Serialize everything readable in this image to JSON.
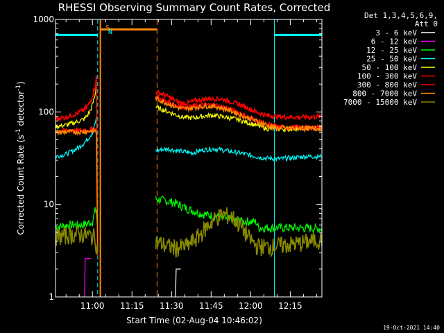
{
  "chart_data": {
    "type": "line",
    "title": "RHESSI Observing Summary Count Rates, Corrected",
    "xlabel": "Start Time (02-Aug-04 10:46:02)",
    "ylabel_parts": [
      "Corrected Count Rate (s",
      "-1",
      " detector",
      "-1",
      ")"
    ],
    "y_scale": "log",
    "ylim": [
      1,
      1000
    ],
    "y_ticks": [
      {
        "value": 1,
        "label": "1"
      },
      {
        "value": 10,
        "label": "10"
      },
      {
        "value": 100,
        "label": "100"
      },
      {
        "value": 1000,
        "label": "1000"
      }
    ],
    "xlim_minutes": [
      0,
      101
    ],
    "x_ticks": [
      {
        "t": 14,
        "label": "11:00"
      },
      {
        "t": 29,
        "label": "11:15"
      },
      {
        "t": 44,
        "label": "11:30"
      },
      {
        "t": 59,
        "label": "11:45"
      },
      {
        "t": 74,
        "label": "12:00"
      },
      {
        "t": 89,
        "label": "12:15"
      }
    ],
    "legend_header": [
      "Det 1,3,4,5,6,9,",
      "Att 0"
    ],
    "legend_placement": "right",
    "series": [
      {
        "name": "3 - 6 keV",
        "color": "#ffffff",
        "points": [
          [
            45.5,
            1
          ],
          [
            45.6,
            2
          ],
          [
            47.5,
            2
          ],
          [
            47.6,
            1
          ]
        ]
      },
      {
        "name": "6 - 12 keV",
        "color": "#ff00ff",
        "points": [
          [
            11,
            1
          ],
          [
            11.1,
            2.6
          ],
          [
            13.5,
            2.6
          ],
          [
            13.6,
            1
          ]
        ]
      },
      {
        "name": "12 - 25 keV",
        "color": "#00ff00",
        "points": [
          [
            0,
            5.7
          ],
          [
            5,
            6
          ],
          [
            10,
            6
          ],
          [
            14,
            6.5
          ],
          [
            15,
            8.5
          ],
          [
            15.5,
            8.8
          ],
          [
            16,
            4.6
          ],
          [
            38,
            11.5
          ],
          [
            45,
            10.5
          ],
          [
            50,
            9
          ],
          [
            55,
            8
          ],
          [
            60,
            7.5
          ],
          [
            65,
            7
          ],
          [
            70,
            6.6
          ],
          [
            76,
            6.5
          ],
          [
            77,
            5.6
          ],
          [
            90,
            5.6
          ],
          [
            101,
            5.5
          ]
        ]
      },
      {
        "name": "25 - 50 keV",
        "color": "#00ffff",
        "points": [
          [
            0,
            33
          ],
          [
            4,
            35
          ],
          [
            8,
            40
          ],
          [
            10,
            44
          ],
          [
            12,
            50
          ],
          [
            14,
            60
          ],
          [
            15,
            75
          ],
          [
            15.5,
            85
          ],
          [
            16,
            3
          ],
          [
            38,
            38
          ],
          [
            42,
            40
          ],
          [
            46,
            38
          ],
          [
            52,
            36
          ],
          [
            56,
            39
          ],
          [
            60,
            40
          ],
          [
            65,
            38
          ],
          [
            70,
            36
          ],
          [
            74,
            34
          ],
          [
            78,
            32
          ],
          [
            84,
            31
          ],
          [
            90,
            32
          ],
          [
            95,
            33
          ],
          [
            101,
            33
          ]
        ]
      },
      {
        "name": "50 - 100 keV",
        "color": "#ffff00",
        "points": [
          [
            0,
            70
          ],
          [
            4,
            72
          ],
          [
            8,
            78
          ],
          [
            11,
            84
          ],
          [
            13,
            100
          ],
          [
            14,
            120
          ],
          [
            15,
            150
          ],
          [
            15.5,
            200
          ],
          [
            16,
            3
          ],
          [
            38,
            112
          ],
          [
            41,
            105
          ],
          [
            45,
            95
          ],
          [
            48,
            88
          ],
          [
            52,
            86
          ],
          [
            56,
            90
          ],
          [
            60,
            92
          ],
          [
            64,
            88
          ],
          [
            68,
            84
          ],
          [
            72,
            78
          ],
          [
            76,
            72
          ],
          [
            80,
            66
          ],
          [
            84,
            65
          ],
          [
            90,
            66
          ],
          [
            95,
            67
          ],
          [
            101,
            68
          ]
        ]
      },
      {
        "name": "100 - 300 keV",
        "color": "#ff0000",
        "points": [
          [
            0,
            84
          ],
          [
            4,
            88
          ],
          [
            8,
            96
          ],
          [
            11,
            106
          ],
          [
            13,
            125
          ],
          [
            14,
            150
          ],
          [
            15,
            190
          ],
          [
            15.5,
            240
          ],
          [
            16,
            3
          ],
          [
            38,
            165
          ],
          [
            42,
            150
          ],
          [
            46,
            130
          ],
          [
            49,
            122
          ],
          [
            53,
            132
          ],
          [
            58,
            140
          ],
          [
            63,
            138
          ],
          [
            68,
            125
          ],
          [
            72,
            114
          ],
          [
            76,
            100
          ],
          [
            80,
            92
          ],
          [
            84,
            89
          ],
          [
            88,
            88
          ],
          [
            92,
            88
          ],
          [
            96,
            88
          ],
          [
            101,
            89
          ]
        ]
      },
      {
        "name": "300 - 800 keV",
        "color": "#ff0000",
        "points": [
          [
            0,
            62
          ],
          [
            5,
            63
          ],
          [
            10,
            63
          ],
          [
            13,
            64
          ],
          [
            14.5,
            66
          ],
          [
            15.5,
            64
          ],
          [
            16,
            3
          ],
          [
            38,
            145
          ],
          [
            42,
            130
          ],
          [
            46,
            118
          ],
          [
            49,
            112
          ],
          [
            53,
            116
          ],
          [
            57,
            120
          ],
          [
            61,
            118
          ],
          [
            65,
            110
          ],
          [
            69,
            100
          ],
          [
            72,
            90
          ],
          [
            76,
            82
          ],
          [
            80,
            74
          ],
          [
            84,
            69
          ],
          [
            90,
            68
          ],
          [
            95,
            68
          ],
          [
            101,
            68
          ]
        ]
      },
      {
        "name": "800 - 7000 keV",
        "color": "#ff8800",
        "points": [
          [
            0,
            60
          ],
          [
            5,
            61
          ],
          [
            10,
            61
          ],
          [
            13,
            62
          ],
          [
            15.5,
            62
          ],
          [
            16,
            3
          ],
          [
            38,
            140
          ],
          [
            42,
            125
          ],
          [
            46,
            112
          ],
          [
            49,
            108
          ],
          [
            53,
            112
          ],
          [
            57,
            116
          ],
          [
            61,
            114
          ],
          [
            65,
            106
          ],
          [
            69,
            96
          ],
          [
            72,
            88
          ],
          [
            76,
            80
          ],
          [
            80,
            72
          ],
          [
            84,
            67
          ],
          [
            90,
            67
          ],
          [
            95,
            66
          ],
          [
            101,
            66
          ]
        ]
      },
      {
        "name": "7000 - 15000 keV",
        "color": "#888800",
        "points": [
          [
            0,
            4.5
          ],
          [
            5,
            4.7
          ],
          [
            10,
            4.8
          ],
          [
            15,
            4.5
          ],
          [
            16,
            3
          ],
          [
            38,
            4
          ],
          [
            42,
            3.6
          ],
          [
            46,
            3.4
          ],
          [
            50,
            3.6
          ],
          [
            54,
            4.5
          ],
          [
            58,
            6
          ],
          [
            61,
            7.3
          ],
          [
            64,
            7.8
          ],
          [
            67,
            7.4
          ],
          [
            70,
            6
          ],
          [
            73,
            4.5
          ],
          [
            76,
            3.6
          ],
          [
            80,
            3.5
          ],
          [
            84,
            3.6
          ],
          [
            88,
            3.7
          ],
          [
            92,
            3.8
          ],
          [
            96,
            4
          ],
          [
            101,
            4.2
          ]
        ]
      }
    ],
    "annotations": {
      "saa_label": "S",
      "night_label": "N",
      "night_spans": [
        [
          0,
          16
        ],
        [
          83,
          101
        ]
      ],
      "saa_interval": [
        17,
        38.5
      ],
      "saa_bar_level": 780
    },
    "colors": {
      "night": "#00ffff",
      "saa": "#ff8800",
      "axes": "#ffffff",
      "background": "#000000"
    }
  },
  "footer_stamp": "19-Oct-2021 14:40"
}
